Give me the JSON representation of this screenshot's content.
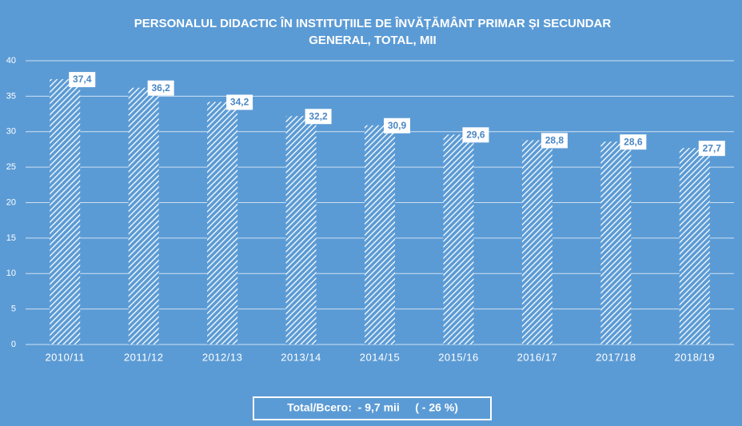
{
  "chart_data": {
    "type": "bar",
    "title": "PERSONALUL DIDACTIC ÎN INSTITUȚIILE DE ÎNVĂȚĂMÂNT PRIMAR ȘI SECUNDAR",
    "subtitle": "GENERAL, TOTAL, MII",
    "categories": [
      "2010/11",
      "2011/12",
      "2012/13",
      "2013/14",
      "2014/15",
      "2015/16",
      "2016/17",
      "2017/18",
      "2018/19"
    ],
    "values": [
      37.4,
      36.2,
      34.2,
      32.2,
      30.9,
      29.6,
      28.8,
      28.6,
      27.7
    ],
    "value_labels": [
      "37,4",
      "36,2",
      "34,2",
      "32,2",
      "30,9",
      "29,6",
      "28,8",
      "28,6",
      "27,7"
    ],
    "color": "#ffffff",
    "ylim": [
      0,
      40
    ],
    "yticks": [
      0,
      5,
      10,
      15,
      20,
      25,
      30,
      35,
      40
    ],
    "grid": true,
    "annotation": "Total/Всего:  - 9,7 mii     ( - 26 %)"
  }
}
